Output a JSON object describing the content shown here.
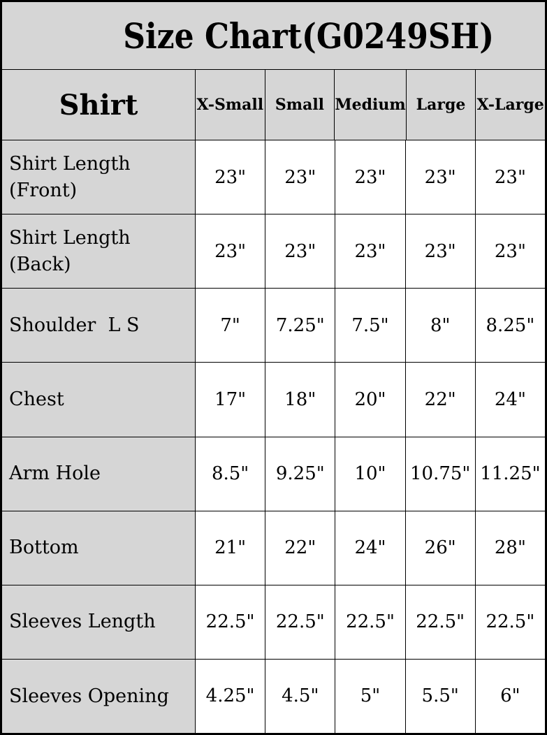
{
  "title": "Size Chart(G0249SH)",
  "chart_data": {
    "type": "table",
    "title": "Size Chart(G0249SH)",
    "corner_label": "Shirt",
    "columns": [
      "X-Small",
      "Small",
      "Medium",
      "Large",
      "X-Large"
    ],
    "rows": [
      {
        "label": "Shirt Length (Front)",
        "values": [
          "23\"",
          "23\"",
          "23\"",
          "23\"",
          "23\""
        ]
      },
      {
        "label": "Shirt Length (Back)",
        "values": [
          "23\"",
          "23\"",
          "23\"",
          "23\"",
          "23\""
        ]
      },
      {
        "label": "Shoulder  L S",
        "values": [
          "7\"",
          "7.25\"",
          "7.5\"",
          "8\"",
          "8.25\""
        ]
      },
      {
        "label": "Chest",
        "values": [
          "17\"",
          "18\"",
          "20\"",
          "22\"",
          "24\""
        ]
      },
      {
        "label": "Arm Hole",
        "values": [
          "8.5\"",
          "9.25\"",
          "10\"",
          "10.75\"",
          "11.25\""
        ]
      },
      {
        "label": "Bottom",
        "values": [
          "21\"",
          "22\"",
          "24\"",
          "26\"",
          "28\""
        ]
      },
      {
        "label": "Sleeves Length",
        "values": [
          "22.5\"",
          "22.5\"",
          "22.5\"",
          "22.5\"",
          "22.5\""
        ]
      },
      {
        "label": "Sleeves Opening",
        "values": [
          "4.25\"",
          "4.5\"",
          "5\"",
          "5.5\"",
          "6\""
        ]
      }
    ]
  },
  "colors": {
    "header_bg": "#d6d6d6",
    "cell_bg": "#ffffff",
    "border": "#000000",
    "text": "#000000"
  }
}
